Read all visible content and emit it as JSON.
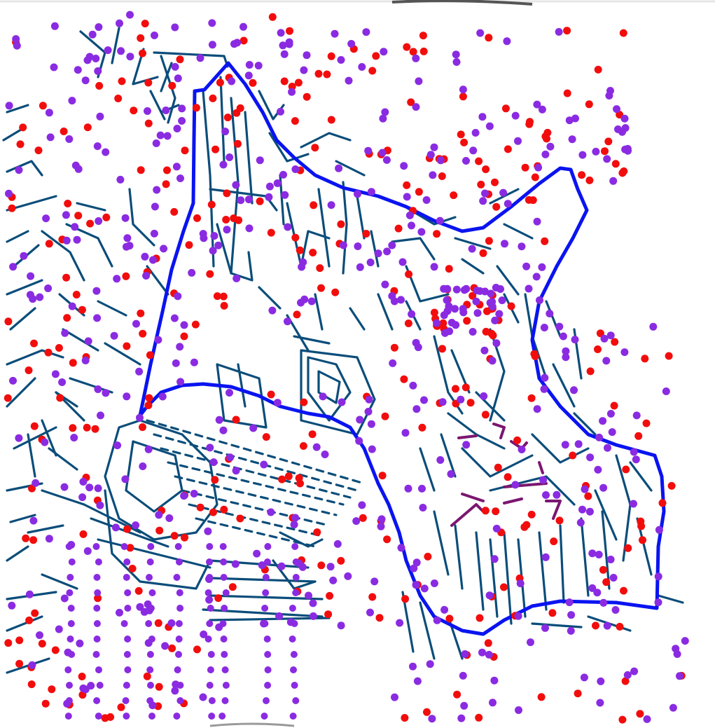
{
  "map": {
    "background_color": "#ffffff",
    "colors": {
      "boundary": "#0a14f0",
      "paths": "#0b4d7a",
      "red_points": "#f20d0d",
      "purple_points": "#8a2be2",
      "highlight_paths": "#7b1670"
    },
    "layers": [
      {
        "id": "survey-paths",
        "icon": "line-segment"
      },
      {
        "id": "study-boundary",
        "icon": "polygon-outline"
      },
      {
        "id": "red-sample-points",
        "icon": "circle-dot"
      },
      {
        "id": "purple-sample-points",
        "icon": "circle-dot"
      },
      {
        "id": "highlighted-paths",
        "icon": "line-segment"
      }
    ]
  }
}
